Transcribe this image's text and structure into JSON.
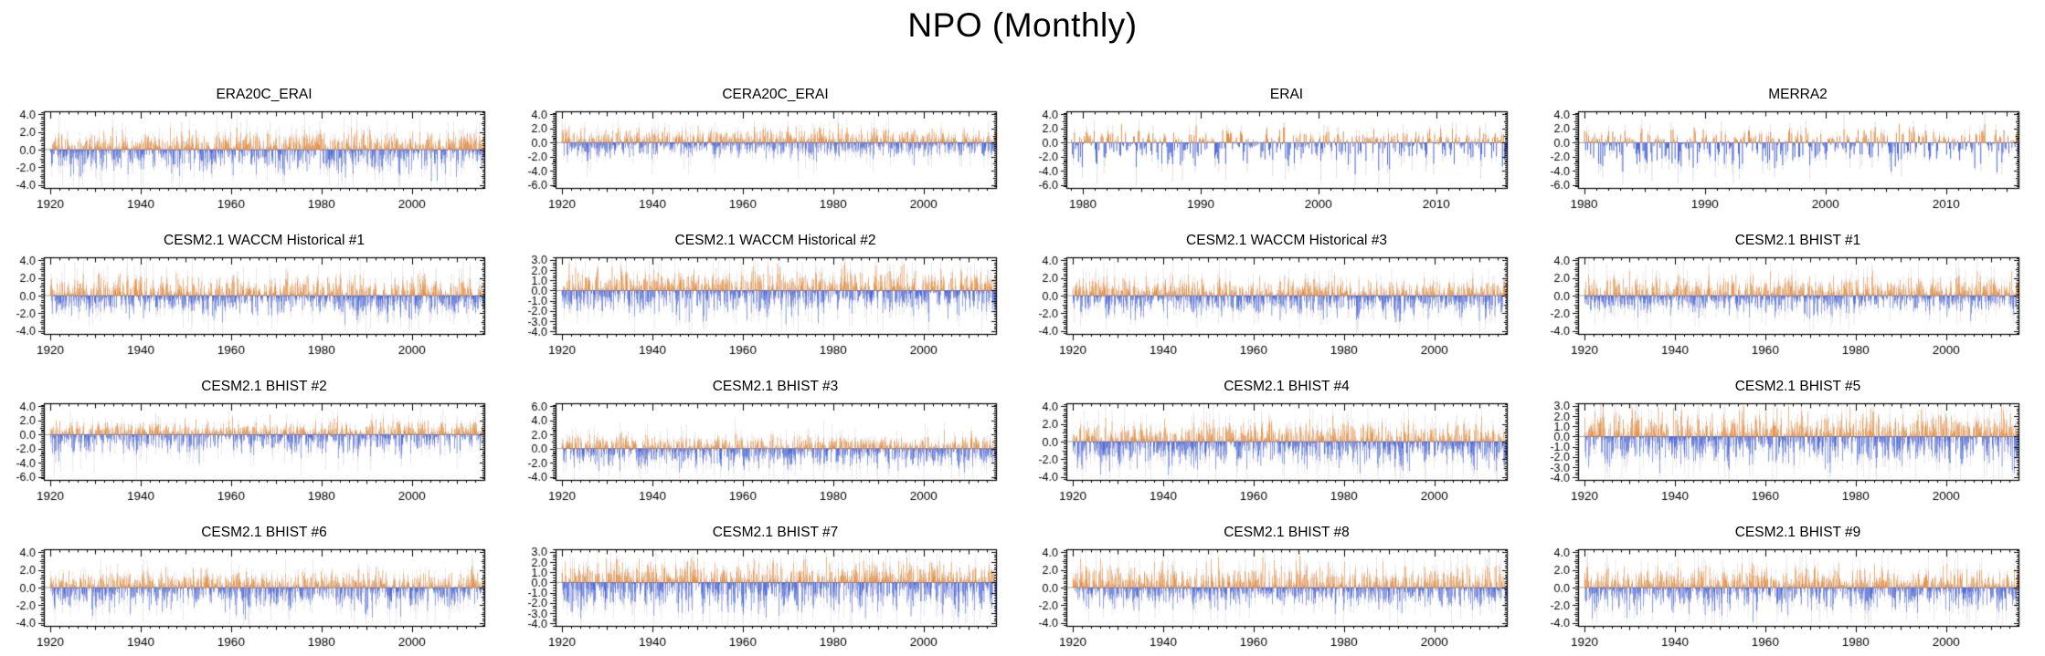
{
  "page": {
    "title": "NPO (Monthly)"
  },
  "chart_data": {
    "type": "bar",
    "description_title": "NPO (Monthly)",
    "layout": {
      "rows": 4,
      "cols": 4,
      "grid": "on-frame-ticks",
      "legend": "none"
    },
    "colors": {
      "positive": "#E87A18",
      "negative": "#2B4CD8",
      "background_series": "#DCDCDC",
      "axis": "#000000",
      "zero_line": "#8F8F8F"
    },
    "panels": [
      {
        "title": "ERA20C_ERAI",
        "seed": 101,
        "data_start": 1920,
        "xlim": [
          1918.6,
          2016
        ],
        "xticks": [
          1920,
          1940,
          1960,
          1980,
          2000
        ],
        "xtick_labels": [
          "1920",
          "1940",
          "1960",
          "1980",
          "2000"
        ],
        "xminor_step": 2,
        "xmedium_step": 10,
        "ylim": [
          -4.35,
          4.35
        ],
        "yticks": [
          4,
          2,
          0,
          -2,
          -4
        ],
        "ytick_labels": [
          "4.0",
          "2.0",
          "0.0",
          "-2.0",
          "-4.0"
        ],
        "approx_max": 2.6,
        "approx_min": -3.6
      },
      {
        "title": "CERA20C_ERAI",
        "seed": 102,
        "data_start": 1920,
        "xlim": [
          1918.6,
          2016
        ],
        "xticks": [
          1920,
          1940,
          1960,
          1980,
          2000
        ],
        "xtick_labels": [
          "1920",
          "1940",
          "1960",
          "1980",
          "2000"
        ],
        "xminor_step": 2,
        "xmedium_step": 10,
        "ylim": [
          -6.45,
          4.45
        ],
        "yticks": [
          4,
          2,
          0,
          -2,
          -4,
          -6
        ],
        "ytick_labels": [
          "4.0",
          "2.0",
          "0.0",
          "-2.0",
          "-4.0",
          "-6.0"
        ],
        "approx_max": 2.7,
        "approx_min": -3.2
      },
      {
        "title": "ERAI",
        "seed": 103,
        "data_start": 1979,
        "xlim": [
          1978.6,
          2016
        ],
        "xticks": [
          1980,
          1990,
          2000,
          2010
        ],
        "xtick_labels": [
          "1980",
          "1990",
          "2000",
          "2010"
        ],
        "xminor_step": 1,
        "xmedium_step": 5,
        "ylim": [
          -6.45,
          4.45
        ],
        "yticks": [
          4,
          2,
          0,
          -2,
          -4,
          -6
        ],
        "ytick_labels": [
          "4.0",
          "2.0",
          "0.0",
          "-2.0",
          "-4.0",
          "-6.0"
        ],
        "approx_max": 2.6,
        "approx_min": -4.5
      },
      {
        "title": "MERRA2",
        "seed": 104,
        "data_start": 1980,
        "xlim": [
          1979.5,
          2016
        ],
        "xticks": [
          1980,
          1990,
          2000,
          2010
        ],
        "xtick_labels": [
          "1980",
          "1990",
          "2000",
          "2010"
        ],
        "xminor_step": 1,
        "xmedium_step": 5,
        "ylim": [
          -6.45,
          4.45
        ],
        "yticks": [
          4,
          2,
          0,
          -2,
          -4,
          -6
        ],
        "ytick_labels": [
          "4.0",
          "2.0",
          "0.0",
          "-2.0",
          "-4.0",
          "-6.0"
        ],
        "approx_max": 2.6,
        "approx_min": -4.2
      },
      {
        "title": "CESM2.1 WACCM Historical #1",
        "seed": 105,
        "data_start": 1920,
        "xlim": [
          1918.6,
          2016
        ],
        "xticks": [
          1920,
          1940,
          1960,
          1980,
          2000
        ],
        "xtick_labels": [
          "1920",
          "1940",
          "1960",
          "1980",
          "2000"
        ],
        "xminor_step": 2,
        "xmedium_step": 10,
        "ylim": [
          -4.35,
          4.35
        ],
        "yticks": [
          4,
          2,
          0,
          -2,
          -4
        ],
        "ytick_labels": [
          "4.0",
          "2.0",
          "0.0",
          "-2.0",
          "-4.0"
        ],
        "approx_max": 2.6,
        "approx_min": -3.3
      },
      {
        "title": "CESM2.1 WACCM Historical #2",
        "seed": 106,
        "data_start": 1920,
        "xlim": [
          1918.6,
          2016
        ],
        "xticks": [
          1920,
          1940,
          1960,
          1980,
          2000
        ],
        "xtick_labels": [
          "1920",
          "1940",
          "1960",
          "1980",
          "2000"
        ],
        "xminor_step": 2,
        "xmedium_step": 10,
        "ylim": [
          -4.25,
          3.25
        ],
        "yticks": [
          3,
          2,
          1,
          0,
          -1,
          -2,
          -3,
          -4
        ],
        "ytick_labels": [
          "3.0",
          "2.0",
          "1.0",
          "0.0",
          "-1.0",
          "-2.0",
          "-3.0",
          "-4.0"
        ],
        "approx_max": 2.7,
        "approx_min": -3.3
      },
      {
        "title": "CESM2.1 WACCM Historical #3",
        "seed": 107,
        "data_start": 1920,
        "xlim": [
          1918.6,
          2016
        ],
        "xticks": [
          1920,
          1940,
          1960,
          1980,
          2000
        ],
        "xtick_labels": [
          "1920",
          "1940",
          "1960",
          "1980",
          "2000"
        ],
        "xminor_step": 2,
        "xmedium_step": 10,
        "ylim": [
          -4.35,
          4.35
        ],
        "yticks": [
          4,
          2,
          0,
          -2,
          -4
        ],
        "ytick_labels": [
          "4.0",
          "2.0",
          "0.0",
          "-2.0",
          "-4.0"
        ],
        "approx_max": 2.4,
        "approx_min": -3.0
      },
      {
        "title": "CESM2.1 BHIST #1",
        "seed": 108,
        "data_start": 1920,
        "xlim": [
          1918.6,
          2016
        ],
        "xticks": [
          1920,
          1940,
          1960,
          1980,
          2000
        ],
        "xtick_labels": [
          "1920",
          "1940",
          "1960",
          "1980",
          "2000"
        ],
        "xminor_step": 2,
        "xmedium_step": 10,
        "ylim": [
          -4.35,
          4.35
        ],
        "yticks": [
          4,
          2,
          0,
          -2,
          -4
        ],
        "ytick_labels": [
          "4.0",
          "2.0",
          "0.0",
          "-2.0",
          "-4.0"
        ],
        "approx_max": 2.8,
        "approx_min": -2.9
      },
      {
        "title": "CESM2.1 BHIST #2",
        "seed": 109,
        "data_start": 1920,
        "xlim": [
          1918.6,
          2016
        ],
        "xticks": [
          1920,
          1940,
          1960,
          1980,
          2000
        ],
        "xtick_labels": [
          "1920",
          "1940",
          "1960",
          "1980",
          "2000"
        ],
        "xminor_step": 2,
        "xmedium_step": 10,
        "ylim": [
          -6.45,
          4.45
        ],
        "yticks": [
          4,
          2,
          0,
          -2,
          -4,
          -6
        ],
        "ytick_labels": [
          "4.0",
          "2.0",
          "0.0",
          "-2.0",
          "-4.0",
          "-6.0"
        ],
        "approx_max": 2.8,
        "approx_min": -4.1
      },
      {
        "title": "CESM2.1 BHIST #3",
        "seed": 110,
        "data_start": 1920,
        "xlim": [
          1918.6,
          2016
        ],
        "xticks": [
          1920,
          1940,
          1960,
          1980,
          2000
        ],
        "xtick_labels": [
          "1920",
          "1940",
          "1960",
          "1980",
          "2000"
        ],
        "xminor_step": 2,
        "xmedium_step": 10,
        "ylim": [
          -4.45,
          6.45
        ],
        "yticks": [
          6,
          4,
          2,
          0,
          -2,
          -4
        ],
        "ytick_labels": [
          "6.0",
          "4.0",
          "2.0",
          "0.0",
          "-2.0",
          "-4.0"
        ],
        "approx_max": 2.6,
        "approx_min": -3.4
      },
      {
        "title": "CESM2.1 BHIST #4",
        "seed": 111,
        "data_start": 1920,
        "xlim": [
          1918.6,
          2016
        ],
        "xticks": [
          1920,
          1940,
          1960,
          1980,
          2000
        ],
        "xtick_labels": [
          "1920",
          "1940",
          "1960",
          "1980",
          "2000"
        ],
        "xminor_step": 2,
        "xmedium_step": 10,
        "ylim": [
          -4.35,
          4.35
        ],
        "yticks": [
          4,
          2,
          0,
          -2,
          -4
        ],
        "ytick_labels": [
          "4.0",
          "2.0",
          "0.0",
          "-2.0",
          "-4.0"
        ],
        "approx_max": 2.9,
        "approx_min": -3.8
      },
      {
        "title": "CESM2.1 BHIST #5",
        "seed": 112,
        "data_start": 1920,
        "xlim": [
          1918.6,
          2016
        ],
        "xticks": [
          1920,
          1940,
          1960,
          1980,
          2000
        ],
        "xtick_labels": [
          "1920",
          "1940",
          "1960",
          "1980",
          "2000"
        ],
        "xminor_step": 2,
        "xmedium_step": 10,
        "ylim": [
          -4.25,
          3.25
        ],
        "yticks": [
          3,
          2,
          1,
          0,
          -1,
          -2,
          -3,
          -4
        ],
        "ytick_labels": [
          "3.0",
          "2.0",
          "1.0",
          "0.0",
          "-1.0",
          "-2.0",
          "-3.0",
          "-4.0"
        ],
        "approx_max": 3.0,
        "approx_min": -3.6
      },
      {
        "title": "CESM2.1 BHIST #6",
        "seed": 113,
        "data_start": 1920,
        "xlim": [
          1918.6,
          2016
        ],
        "xticks": [
          1920,
          1940,
          1960,
          1980,
          2000
        ],
        "xtick_labels": [
          "1920",
          "1940",
          "1960",
          "1980",
          "2000"
        ],
        "xminor_step": 2,
        "xmedium_step": 10,
        "ylim": [
          -4.35,
          4.35
        ],
        "yticks": [
          4,
          2,
          0,
          -2,
          -4
        ],
        "ytick_labels": [
          "4.0",
          "2.0",
          "0.0",
          "-2.0",
          "-4.0"
        ],
        "approx_max": 2.5,
        "approx_min": -3.6
      },
      {
        "title": "CESM2.1 BHIST #7",
        "seed": 114,
        "data_start": 1920,
        "xlim": [
          1918.6,
          2016
        ],
        "xticks": [
          1920,
          1940,
          1960,
          1980,
          2000
        ],
        "xtick_labels": [
          "1920",
          "1940",
          "1960",
          "1980",
          "2000"
        ],
        "xminor_step": 2,
        "xmedium_step": 10,
        "ylim": [
          -4.25,
          3.25
        ],
        "yticks": [
          3,
          2,
          1,
          0,
          -1,
          -2,
          -3,
          -4
        ],
        "ytick_labels": [
          "3.0",
          "2.0",
          "1.0",
          "0.0",
          "-1.0",
          "-2.0",
          "-3.0",
          "-4.0"
        ],
        "approx_max": 2.5,
        "approx_min": -3.5
      },
      {
        "title": "CESM2.1 BHIST #8",
        "seed": 115,
        "data_start": 1920,
        "xlim": [
          1918.6,
          2016
        ],
        "xticks": [
          1920,
          1940,
          1960,
          1980,
          2000
        ],
        "xtick_labels": [
          "1920",
          "1940",
          "1960",
          "1980",
          "2000"
        ],
        "xminor_step": 2,
        "xmedium_step": 10,
        "ylim": [
          -4.35,
          4.35
        ],
        "yticks": [
          4,
          2,
          0,
          -2,
          -4
        ],
        "ytick_labels": [
          "4.0",
          "2.0",
          "0.0",
          "-2.0",
          "-4.0"
        ],
        "approx_max": 3.6,
        "approx_min": -3.0
      },
      {
        "title": "CESM2.1 BHIST #9",
        "seed": 116,
        "data_start": 1920,
        "xlim": [
          1918.6,
          2016
        ],
        "xticks": [
          1920,
          1940,
          1960,
          1980,
          2000
        ],
        "xtick_labels": [
          "1920",
          "1940",
          "1960",
          "1980",
          "2000"
        ],
        "xminor_step": 2,
        "xmedium_step": 10,
        "ylim": [
          -4.35,
          4.35
        ],
        "yticks": [
          4,
          2,
          0,
          -2,
          -4
        ],
        "ytick_labels": [
          "4.0",
          "2.0",
          "0.0",
          "-2.0",
          "-4.0"
        ],
        "approx_max": 2.8,
        "approx_min": -3.9
      }
    ]
  }
}
